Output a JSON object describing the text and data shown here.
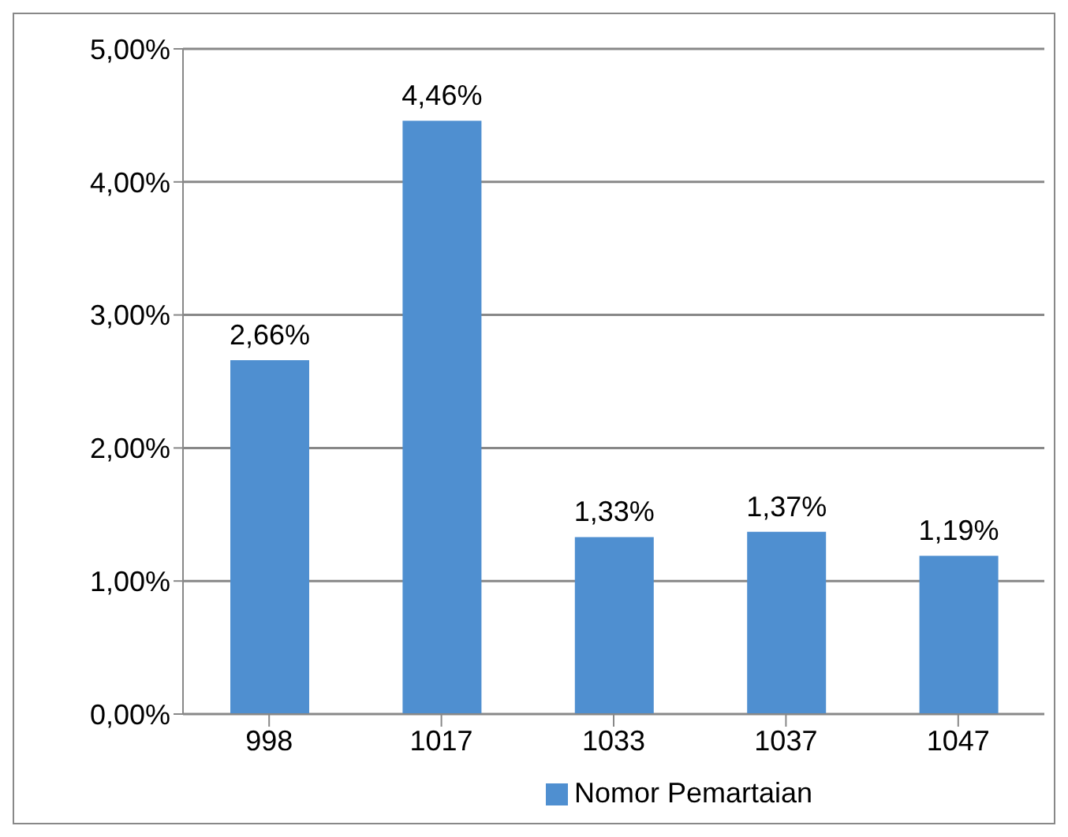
{
  "chart_data": {
    "type": "bar",
    "categories": [
      "998",
      "1017",
      "1033",
      "1037",
      "1047"
    ],
    "series": [
      {
        "name": "Nomor Pemartaian",
        "color": "#4f8fd0",
        "values": [
          2.66,
          4.46,
          1.33,
          1.37,
          1.19
        ],
        "value_labels": [
          "2,66%",
          "4,46%",
          "1,33%",
          "1,37%",
          "1,19%"
        ]
      }
    ],
    "ylim": [
      0,
      5
    ],
    "yticks": [
      {
        "value": 0,
        "label": "0,00%"
      },
      {
        "value": 1,
        "label": "1,00%"
      },
      {
        "value": 2,
        "label": "2,00%"
      },
      {
        "value": 3,
        "label": "3,00%"
      },
      {
        "value": 4,
        "label": "4,00%"
      },
      {
        "value": 5,
        "label": "5,00%"
      }
    ],
    "grid": "y",
    "legend": "bottom"
  }
}
